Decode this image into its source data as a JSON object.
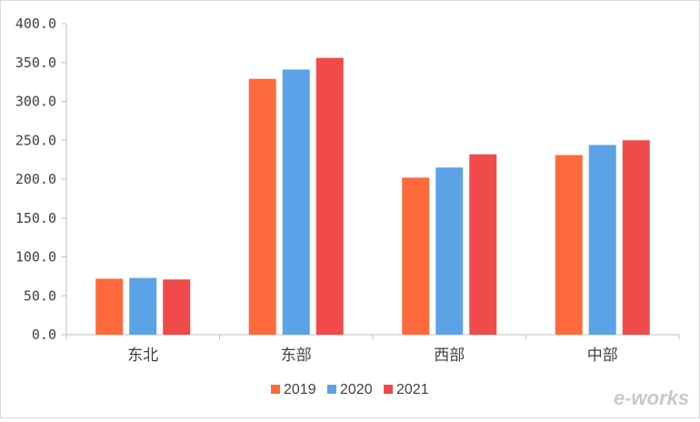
{
  "chart_data": {
    "type": "bar",
    "categories": [
      "东北",
      "东部",
      "西部",
      "中部"
    ],
    "series": [
      {
        "name": "2019",
        "color": "#ff6a3d",
        "values": [
          72.0,
          329.0,
          202.0,
          231.0
        ]
      },
      {
        "name": "2020",
        "color": "#5ba3e6",
        "values": [
          73.0,
          341.0,
          215.0,
          244.0
        ]
      },
      {
        "name": "2021",
        "color": "#f04a4a",
        "values": [
          71.0,
          356.0,
          232.0,
          250.0
        ]
      }
    ],
    "yticks": [
      "0.0",
      "50.0",
      "100.0",
      "150.0",
      "200.0",
      "250.0",
      "300.0",
      "350.0",
      "400.0"
    ],
    "ylim": [
      0,
      400
    ],
    "grid": false,
    "legend_position": "bottom"
  },
  "watermark": {
    "text": "e-works",
    "color": "#c9c9c9",
    "accent": "#d98a3a"
  }
}
